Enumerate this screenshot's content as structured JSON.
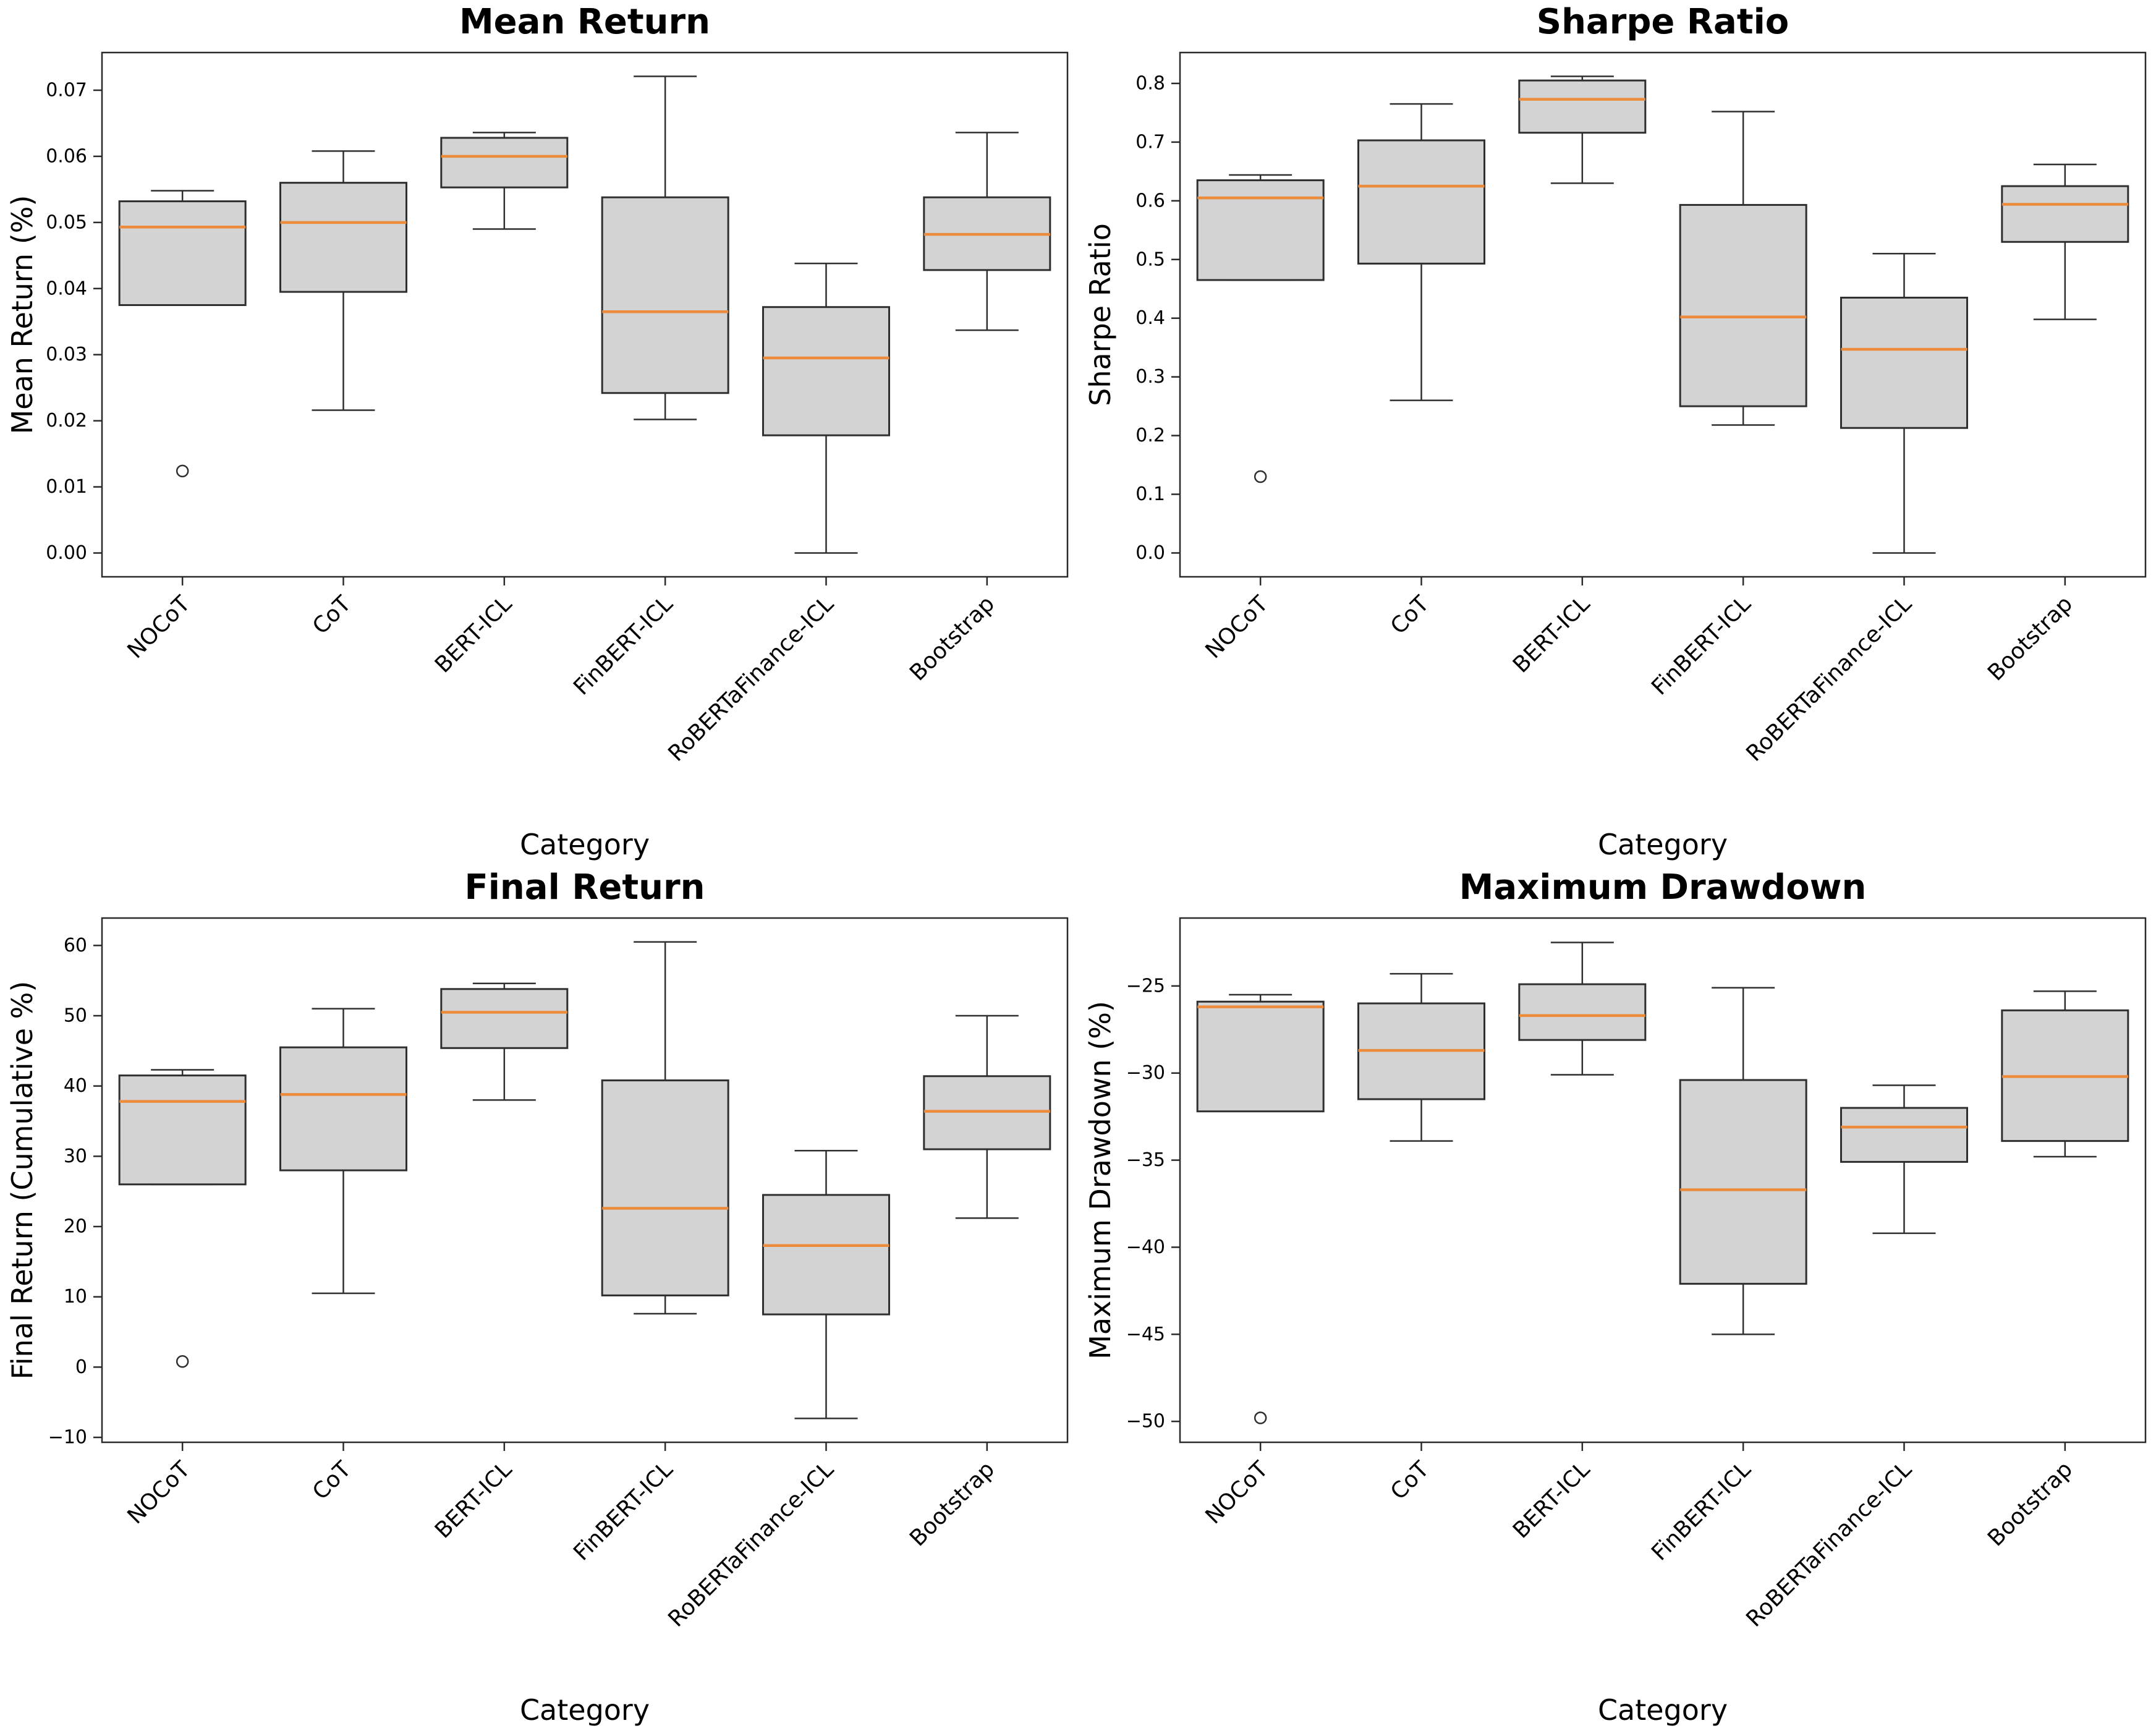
{
  "figure": {
    "background": "#ffffff",
    "layout": "2x2 grid of box plots"
  },
  "style": {
    "box_fill": "#d3d3d3",
    "box_edge": "#2f2f2f",
    "median_color": "#ed8b3c",
    "spine_color": "#2a2a2a",
    "tick_color": "#2a2a2a",
    "outlier_edge": "#2f2f2f",
    "text_color": "#000000"
  },
  "categories": [
    "NOCoT",
    "CoT",
    "BERT-ICL",
    "FinBERT-ICL",
    "RoBERTaFinance-ICL",
    "Bootstrap"
  ],
  "xlabel": "Category",
  "chart_data": [
    {
      "type": "box",
      "title": "Mean Return",
      "ylabel": "Mean Return (%)",
      "xlabel": "Category",
      "grid": false,
      "legend": false,
      "ylim": [
        -0.0036,
        0.0757
      ],
      "yticks": [
        0.0,
        0.01,
        0.02,
        0.03,
        0.04,
        0.05,
        0.06,
        0.07
      ],
      "ytick_labels": [
        "0.00",
        "0.01",
        "0.02",
        "0.03",
        "0.04",
        "0.05",
        "0.06",
        "0.07"
      ],
      "boxes": [
        {
          "category": "NOCoT",
          "whisker_low": 0.0375,
          "q1": 0.0375,
          "median": 0.0493,
          "q3": 0.0532,
          "whisker_high": 0.0548,
          "outliers": [
            0.0124
          ]
        },
        {
          "category": "CoT",
          "whisker_low": 0.0216,
          "q1": 0.0395,
          "median": 0.05,
          "q3": 0.056,
          "whisker_high": 0.0608,
          "outliers": []
        },
        {
          "category": "BERT-ICL",
          "whisker_low": 0.049,
          "q1": 0.0553,
          "median": 0.06,
          "q3": 0.0628,
          "whisker_high": 0.0636,
          "outliers": []
        },
        {
          "category": "FinBERT-ICL",
          "whisker_low": 0.0202,
          "q1": 0.0242,
          "median": 0.0365,
          "q3": 0.0538,
          "whisker_high": 0.0721,
          "outliers": []
        },
        {
          "category": "RoBERTaFinance-ICL",
          "whisker_low": 0.0,
          "q1": 0.0178,
          "median": 0.0295,
          "q3": 0.0372,
          "whisker_high": 0.0438,
          "outliers": []
        },
        {
          "category": "Bootstrap",
          "whisker_low": 0.0337,
          "q1": 0.0428,
          "median": 0.0482,
          "q3": 0.0538,
          "whisker_high": 0.0636,
          "outliers": []
        }
      ]
    },
    {
      "type": "box",
      "title": "Sharpe Ratio",
      "ylabel": "Sharpe Ratio",
      "xlabel": "Category",
      "grid": false,
      "legend": false,
      "ylim": [
        -0.0406,
        0.8526
      ],
      "yticks": [
        0.0,
        0.1,
        0.2,
        0.3,
        0.4,
        0.5,
        0.6,
        0.7,
        0.8
      ],
      "ytick_labels": [
        "0.0",
        "0.1",
        "0.2",
        "0.3",
        "0.4",
        "0.5",
        "0.6",
        "0.7",
        "0.8"
      ],
      "boxes": [
        {
          "category": "NOCoT",
          "whisker_low": 0.465,
          "q1": 0.465,
          "median": 0.605,
          "q3": 0.635,
          "whisker_high": 0.644,
          "outliers": [
            0.13
          ]
        },
        {
          "category": "CoT",
          "whisker_low": 0.26,
          "q1": 0.493,
          "median": 0.625,
          "q3": 0.703,
          "whisker_high": 0.765,
          "outliers": []
        },
        {
          "category": "BERT-ICL",
          "whisker_low": 0.63,
          "q1": 0.716,
          "median": 0.773,
          "q3": 0.805,
          "whisker_high": 0.812,
          "outliers": []
        },
        {
          "category": "FinBERT-ICL",
          "whisker_low": 0.218,
          "q1": 0.25,
          "median": 0.402,
          "q3": 0.593,
          "whisker_high": 0.752,
          "outliers": []
        },
        {
          "category": "RoBERTaFinance-ICL",
          "whisker_low": 0.0,
          "q1": 0.213,
          "median": 0.347,
          "q3": 0.435,
          "whisker_high": 0.51,
          "outliers": []
        },
        {
          "category": "Bootstrap",
          "whisker_low": 0.398,
          "q1": 0.53,
          "median": 0.594,
          "q3": 0.625,
          "whisker_high": 0.662,
          "outliers": []
        }
      ]
    },
    {
      "type": "box",
      "title": "Final Return",
      "ylabel": "Final Return (Cumulative %)",
      "xlabel": "Category",
      "grid": false,
      "legend": false,
      "ylim": [
        -10.7,
        63.9
      ],
      "yticks": [
        -10,
        0,
        10,
        20,
        30,
        40,
        50,
        60
      ],
      "ytick_labels": [
        "−10",
        "0",
        "10",
        "20",
        "30",
        "40",
        "50",
        "60"
      ],
      "boxes": [
        {
          "category": "NOCoT",
          "whisker_low": 26.0,
          "q1": 26.0,
          "median": 37.8,
          "q3": 41.5,
          "whisker_high": 42.3,
          "outliers": [
            0.8
          ]
        },
        {
          "category": "CoT",
          "whisker_low": 10.5,
          "q1": 28.0,
          "median": 38.8,
          "q3": 45.5,
          "whisker_high": 51.0,
          "outliers": []
        },
        {
          "category": "BERT-ICL",
          "whisker_low": 38.0,
          "q1": 45.4,
          "median": 50.5,
          "q3": 53.8,
          "whisker_high": 54.6,
          "outliers": []
        },
        {
          "category": "FinBERT-ICL",
          "whisker_low": 7.6,
          "q1": 10.2,
          "median": 22.6,
          "q3": 40.8,
          "whisker_high": 60.5,
          "outliers": []
        },
        {
          "category": "RoBERTaFinance-ICL",
          "whisker_low": -7.3,
          "q1": 7.5,
          "median": 17.3,
          "q3": 24.5,
          "whisker_high": 30.8,
          "outliers": []
        },
        {
          "category": "Bootstrap",
          "whisker_low": 21.2,
          "q1": 31.0,
          "median": 36.4,
          "q3": 41.4,
          "whisker_high": 50.0,
          "outliers": []
        }
      ]
    },
    {
      "type": "box",
      "title": "Maximum Drawdown",
      "ylabel": "Maximum Drawdown (%)",
      "xlabel": "Category",
      "grid": false,
      "legend": false,
      "ylim": [
        -51.2,
        -21.1
      ],
      "yticks": [
        -50,
        -45,
        -40,
        -35,
        -30,
        -25
      ],
      "ytick_labels": [
        "−50",
        "−45",
        "−40",
        "−35",
        "−30",
        "−25"
      ],
      "boxes": [
        {
          "category": "NOCoT",
          "whisker_low": -32.2,
          "q1": -32.2,
          "median": -26.2,
          "q3": -25.9,
          "whisker_high": -25.5,
          "outliers": [
            -49.8
          ]
        },
        {
          "category": "CoT",
          "whisker_low": -33.9,
          "q1": -31.5,
          "median": -28.7,
          "q3": -26.0,
          "whisker_high": -24.3,
          "outliers": []
        },
        {
          "category": "BERT-ICL",
          "whisker_low": -30.1,
          "q1": -28.1,
          "median": -26.7,
          "q3": -24.9,
          "whisker_high": -22.5,
          "outliers": []
        },
        {
          "category": "FinBERT-ICL",
          "whisker_low": -45.0,
          "q1": -42.1,
          "median": -36.7,
          "q3": -30.4,
          "whisker_high": -25.1,
          "outliers": []
        },
        {
          "category": "RoBERTaFinance-ICL",
          "whisker_low": -39.2,
          "q1": -35.1,
          "median": -33.1,
          "q3": -32.0,
          "whisker_high": -30.7,
          "outliers": []
        },
        {
          "category": "Bootstrap",
          "whisker_low": -34.8,
          "q1": -33.9,
          "median": -30.2,
          "q3": -26.4,
          "whisker_high": -25.3,
          "outliers": []
        }
      ]
    }
  ]
}
